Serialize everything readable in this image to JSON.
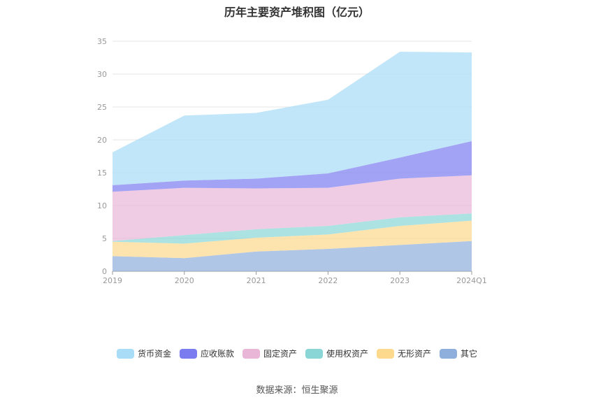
{
  "chart_data": {
    "type": "area",
    "stacked": true,
    "title": "历年主要资产堆积图（亿元）",
    "categories": [
      "2019",
      "2020",
      "2021",
      "2022",
      "2023",
      "2024Q1"
    ],
    "y_ticks": [
      "0",
      "5",
      "10",
      "15",
      "20",
      "25",
      "30",
      "35"
    ],
    "ylim": [
      0,
      35
    ],
    "grid": true,
    "legend_position": "bottom",
    "series": [
      {
        "name": "其它",
        "color": "#8eaedb",
        "values": [
          2.3,
          2.0,
          3.0,
          3.4,
          4.0,
          4.6
        ]
      },
      {
        "name": "无形资产",
        "color": "#fcd98d",
        "values": [
          2.2,
          2.2,
          2.1,
          2.2,
          2.9,
          3.1
        ]
      },
      {
        "name": "使用权资产",
        "color": "#8ad6d6",
        "values": [
          0.1,
          1.3,
          1.3,
          1.3,
          1.3,
          1.1
        ]
      },
      {
        "name": "固定资产",
        "color": "#eab6d8",
        "values": [
          7.5,
          7.2,
          6.2,
          5.8,
          5.9,
          5.8
        ]
      },
      {
        "name": "应收账款",
        "color": "#7b7cf0",
        "values": [
          1.0,
          1.1,
          1.5,
          2.2,
          3.2,
          5.2
        ]
      },
      {
        "name": "货币资金",
        "color": "#a8dcf7",
        "values": [
          5.0,
          9.9,
          10.0,
          11.2,
          16.1,
          13.5
        ]
      }
    ]
  },
  "legend_order": [
    "货币资金",
    "应收账款",
    "固定资产",
    "使用权资产",
    "无形资产",
    "其它"
  ],
  "source_note": "数据来源：恒生聚源"
}
